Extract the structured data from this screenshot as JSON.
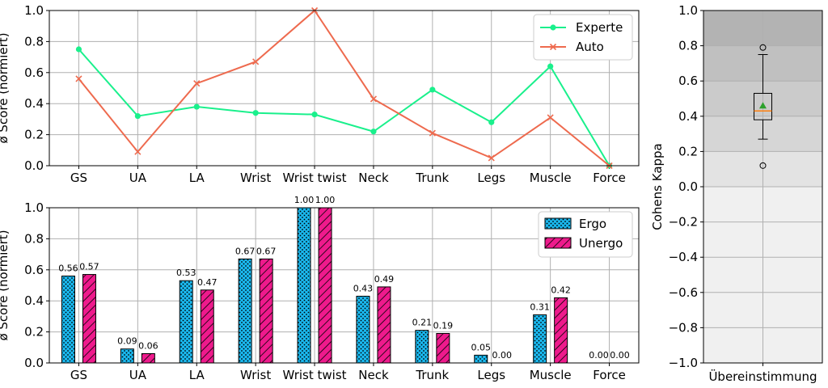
{
  "chart_data": [
    {
      "type": "line",
      "ylabel": "ø Score (normiert)",
      "ylim": [
        0,
        1.0
      ],
      "yticks": [
        "0.0",
        "0.2",
        "0.4",
        "0.6",
        "0.8",
        "1.0"
      ],
      "categories": [
        "GS",
        "UA",
        "LA",
        "Wrist",
        "Wrist twist",
        "Neck",
        "Trunk",
        "Legs",
        "Muscle",
        "Force"
      ],
      "grid": true,
      "legend_position": "top-right",
      "series": [
        {
          "name": "Experte",
          "color": "#1af08c",
          "marker": "circle",
          "values": [
            0.75,
            0.32,
            0.38,
            0.34,
            0.33,
            0.22,
            0.49,
            0.28,
            0.64,
            0.0
          ]
        },
        {
          "name": "Auto",
          "color": "#ee6a4e",
          "marker": "x",
          "values": [
            0.56,
            0.09,
            0.53,
            0.67,
            1.0,
            0.43,
            0.21,
            0.05,
            0.31,
            0.0
          ]
        }
      ]
    },
    {
      "type": "bar",
      "ylabel": "ø Score (normiert)",
      "ylim": [
        0,
        1.0
      ],
      "yticks": [
        "0.0",
        "0.2",
        "0.4",
        "0.6",
        "0.8",
        "1.0"
      ],
      "categories": [
        "GS",
        "UA",
        "LA",
        "Wrist",
        "Wrist twist",
        "Neck",
        "Trunk",
        "Legs",
        "Muscle",
        "Force"
      ],
      "grid": true,
      "legend_position": "top-right",
      "series": [
        {
          "name": "Ergo",
          "color": "#1ab8ee",
          "hatch": "dots",
          "values": [
            0.56,
            0.09,
            0.53,
            0.67,
            1.0,
            0.43,
            0.21,
            0.05,
            0.31,
            0.0
          ],
          "labels": [
            "0.56",
            "0.09",
            "0.53",
            "0.67",
            "1.00",
            "0.43",
            "0.21",
            "0.05",
            "0.31",
            "0.00"
          ]
        },
        {
          "name": "Unergo",
          "color": "#ee1a8c",
          "hatch": "diagonal",
          "values": [
            0.57,
            0.06,
            0.47,
            0.67,
            1.0,
            0.49,
            0.19,
            0.0,
            0.42,
            0.0
          ],
          "labels": [
            "0.57",
            "0.06",
            "0.47",
            "0.67",
            "1.00",
            "0.49",
            "0.19",
            "0.00",
            "0.42",
            "0.00"
          ]
        }
      ]
    },
    {
      "type": "box",
      "ylabel": "Cohens Kappa",
      "ylim": [
        -1.0,
        1.0
      ],
      "yticks": [
        "1.0",
        "0.8",
        "0.6",
        "0.4",
        "0.2",
        "0.0",
        "−0.2",
        "−0.4",
        "−0.6",
        "−0.8",
        "−1.0"
      ],
      "categories": [
        "Übereinstimmung"
      ],
      "grid": true,
      "bands": [
        {
          "from": 0.8,
          "to": 1.0,
          "color": "#b3b3b3"
        },
        {
          "from": 0.6,
          "to": 0.8,
          "color": "#c0c0c0"
        },
        {
          "from": 0.4,
          "to": 0.6,
          "color": "#cbcbcb"
        },
        {
          "from": 0.2,
          "to": 0.4,
          "color": "#d6d6d6"
        },
        {
          "from": 0.0,
          "to": 0.2,
          "color": "#e3e3e3"
        },
        {
          "from": -1.0,
          "to": 0.0,
          "color": "#f0f0f0"
        }
      ],
      "box": {
        "q1": 0.38,
        "median": 0.43,
        "q3": 0.53,
        "whisker_low": 0.27,
        "whisker_high": 0.75,
        "mean": 0.46,
        "outliers": [
          0.79,
          0.12
        ]
      }
    }
  ]
}
